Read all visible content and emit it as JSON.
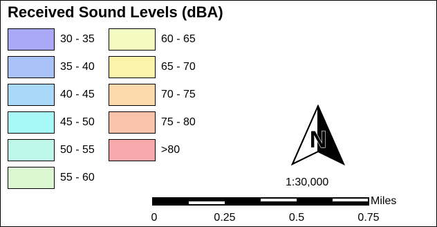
{
  "legend": {
    "title": "Received Sound Levels (dBA)",
    "items": [
      {
        "label": "30 - 35",
        "color": "#a9a9f8"
      },
      {
        "label": "35 - 40",
        "color": "#a9c2f8"
      },
      {
        "label": "40 - 45",
        "color": "#a9d8f8"
      },
      {
        "label": "45 - 50",
        "color": "#a9f8f8"
      },
      {
        "label": "50 - 55",
        "color": "#bff8ea"
      },
      {
        "label": "55 - 60",
        "color": "#dcf8d2"
      },
      {
        "label": "60 - 65",
        "color": "#f3fbc3"
      },
      {
        "label": "65 - 70",
        "color": "#fbf3aa"
      },
      {
        "label": "70 - 75",
        "color": "#fbd9ab"
      },
      {
        "label": "75 - 80",
        "color": "#fbc3ab"
      },
      {
        "label": ">80",
        "color": "#f8a9ab"
      }
    ]
  },
  "north_arrow": {
    "letter": "N",
    "icon": "north-arrow-icon"
  },
  "scale": {
    "ratio": "1:30,000",
    "unit": "Miles",
    "ticks": [
      "0",
      "0.25",
      "0.5",
      "0.75"
    ]
  }
}
